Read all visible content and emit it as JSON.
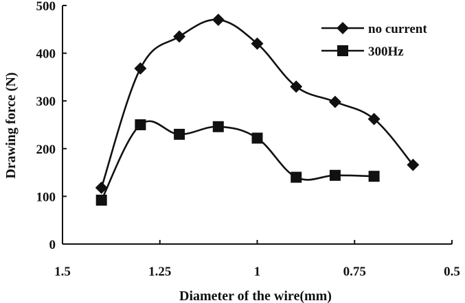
{
  "chart_data": {
    "type": "line",
    "title": "",
    "xlabel": "Diameter of the wire(mm)",
    "ylabel": "Drawing force (N)",
    "xlim": [
      1.5,
      0.5
    ],
    "ylim": [
      0,
      500
    ],
    "x_reversed": true,
    "grid": false,
    "legend_position": "top-right",
    "x_ticks": [
      {
        "value": 1.5,
        "label": "1.5"
      },
      {
        "value": 1.25,
        "label": "1.25"
      },
      {
        "value": 1.0,
        "label": "1"
      },
      {
        "value": 0.75,
        "label": "0.75"
      },
      {
        "value": 0.5,
        "label": "0.5"
      }
    ],
    "y_ticks": [
      {
        "value": 0,
        "label": "0"
      },
      {
        "value": 100,
        "label": "100"
      },
      {
        "value": 200,
        "label": "200"
      },
      {
        "value": 300,
        "label": "300"
      },
      {
        "value": 400,
        "label": "400"
      },
      {
        "value": 500,
        "label": "500"
      }
    ],
    "series": [
      {
        "name": "no current",
        "marker": "diamond",
        "color": "#111111",
        "x": [
          1.4,
          1.3,
          1.2,
          1.1,
          1.0,
          0.9,
          0.8,
          0.7,
          0.6
        ],
        "values": [
          118,
          368,
          435,
          470,
          420,
          330,
          298,
          262,
          166
        ]
      },
      {
        "name": "300Hz",
        "marker": "square",
        "color": "#111111",
        "x": [
          1.4,
          1.3,
          1.2,
          1.1,
          1.0,
          0.9,
          0.8,
          0.7
        ],
        "values": [
          92,
          250,
          230,
          246,
          222,
          140,
          144,
          142
        ]
      }
    ]
  }
}
